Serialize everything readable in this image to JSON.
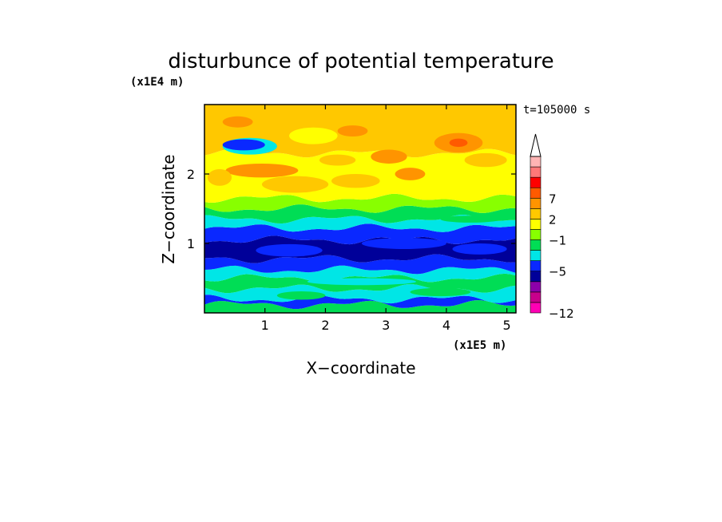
{
  "chart_data": {
    "type": "heatmap",
    "title": "disturbunce of potential temperature",
    "time_label": "t=105000 s",
    "xlabel": "X−coordinate",
    "ylabel": "Z−coordinate",
    "x_scale_label": "(x1E5 m)",
    "y_scale_label": "(x1E4 m)",
    "x_ticks": [
      "1",
      "2",
      "3",
      "4",
      "5"
    ],
    "y_ticks": [
      "1",
      "2"
    ],
    "xlim": [
      0,
      5.15
    ],
    "ylim": [
      0,
      3.0
    ],
    "colorbar": {
      "labels": [
        "7",
        "2",
        "−1",
        "−5",
        "−12"
      ],
      "colors": [
        "#ff00b4",
        "#c8008c",
        "#8c00aa",
        "#000099",
        "#0a28ff",
        "#00e6e6",
        "#00dd55",
        "#88ff00",
        "#ffff00",
        "#ffc800",
        "#ff9400",
        "#ff5a00",
        "#ff0000",
        "#ff7878",
        "#ffb4b4"
      ],
      "extend": "max"
    },
    "bands": [
      {
        "z0": 0.0,
        "z1": 0.12,
        "color": "#00dd55"
      },
      {
        "z0": 0.12,
        "z1": 0.2,
        "color": "#0a28ff"
      },
      {
        "z0": 0.2,
        "z1": 0.35,
        "color": "#00e6e6"
      },
      {
        "z0": 0.35,
        "z1": 0.5,
        "color": "#00dd55"
      },
      {
        "z0": 0.5,
        "z1": 0.62,
        "color": "#00e6e6"
      },
      {
        "z0": 0.62,
        "z1": 0.78,
        "color": "#0a28ff"
      },
      {
        "z0": 0.78,
        "z1": 1.05,
        "color": "#000099"
      },
      {
        "z0": 1.05,
        "z1": 1.22,
        "color": "#0a28ff"
      },
      {
        "z0": 1.22,
        "z1": 1.35,
        "color": "#00e6e6"
      },
      {
        "z0": 1.35,
        "z1": 1.5,
        "color": "#00dd55"
      },
      {
        "z0": 1.5,
        "z1": 1.65,
        "color": "#88ff00"
      },
      {
        "z0": 1.65,
        "z1": 2.3,
        "color": "#ffff00"
      },
      {
        "z0": 2.3,
        "z1": 3.0,
        "color": "#ffc800"
      }
    ],
    "features": [
      {
        "cx": 0.75,
        "cz": 2.4,
        "rx": 0.45,
        "rz": 0.12,
        "color": "#00e6e6"
      },
      {
        "cx": 0.65,
        "cz": 2.42,
        "rx": 0.35,
        "rz": 0.08,
        "color": "#0a28ff"
      },
      {
        "cx": 0.95,
        "cz": 2.05,
        "rx": 0.6,
        "rz": 0.1,
        "color": "#ff9400"
      },
      {
        "cx": 1.8,
        "cz": 2.55,
        "rx": 0.4,
        "rz": 0.12,
        "color": "#ffff00"
      },
      {
        "cx": 2.45,
        "cz": 2.62,
        "rx": 0.25,
        "rz": 0.08,
        "color": "#ff9400"
      },
      {
        "cx": 3.05,
        "cz": 2.25,
        "rx": 0.3,
        "rz": 0.1,
        "color": "#ff9400"
      },
      {
        "cx": 3.4,
        "cz": 2.0,
        "rx": 0.25,
        "rz": 0.09,
        "color": "#ff9400"
      },
      {
        "cx": 4.2,
        "cz": 2.45,
        "rx": 0.4,
        "rz": 0.14,
        "color": "#ff9400"
      },
      {
        "cx": 4.2,
        "cz": 2.45,
        "rx": 0.15,
        "rz": 0.06,
        "color": "#ff5a00"
      },
      {
        "cx": 4.65,
        "cz": 2.2,
        "rx": 0.35,
        "rz": 0.1,
        "color": "#ffc800"
      },
      {
        "cx": 1.5,
        "cz": 1.85,
        "rx": 0.55,
        "rz": 0.12,
        "color": "#ffc800"
      },
      {
        "cx": 0.25,
        "cz": 1.95,
        "rx": 0.2,
        "rz": 0.12,
        "color": "#ffc800"
      },
      {
        "cx": 2.5,
        "cz": 1.9,
        "rx": 0.4,
        "rz": 0.1,
        "color": "#ffc800"
      },
      {
        "cx": 0.55,
        "cz": 2.75,
        "rx": 0.25,
        "rz": 0.08,
        "color": "#ff9400"
      },
      {
        "cx": 2.2,
        "cz": 2.2,
        "rx": 0.3,
        "rz": 0.08,
        "color": "#ffc800"
      },
      {
        "cx": 4.4,
        "cz": 1.35,
        "rx": 0.5,
        "rz": 0.05,
        "color": "#00dd55"
      },
      {
        "cx": 1.4,
        "cz": 0.9,
        "rx": 0.55,
        "rz": 0.09,
        "color": "#0a28ff"
      },
      {
        "cx": 3.3,
        "cz": 1.0,
        "rx": 0.7,
        "rz": 0.08,
        "color": "#0a28ff"
      },
      {
        "cx": 4.55,
        "cz": 0.92,
        "rx": 0.45,
        "rz": 0.08,
        "color": "#0a28ff"
      },
      {
        "cx": 2.6,
        "cz": 0.45,
        "rx": 0.9,
        "rz": 0.05,
        "color": "#00e6e6"
      },
      {
        "cx": 1.6,
        "cz": 0.25,
        "rx": 0.4,
        "rz": 0.06,
        "color": "#00dd55"
      },
      {
        "cx": 3.9,
        "cz": 0.3,
        "rx": 0.5,
        "rz": 0.06,
        "color": "#00dd55"
      }
    ]
  }
}
